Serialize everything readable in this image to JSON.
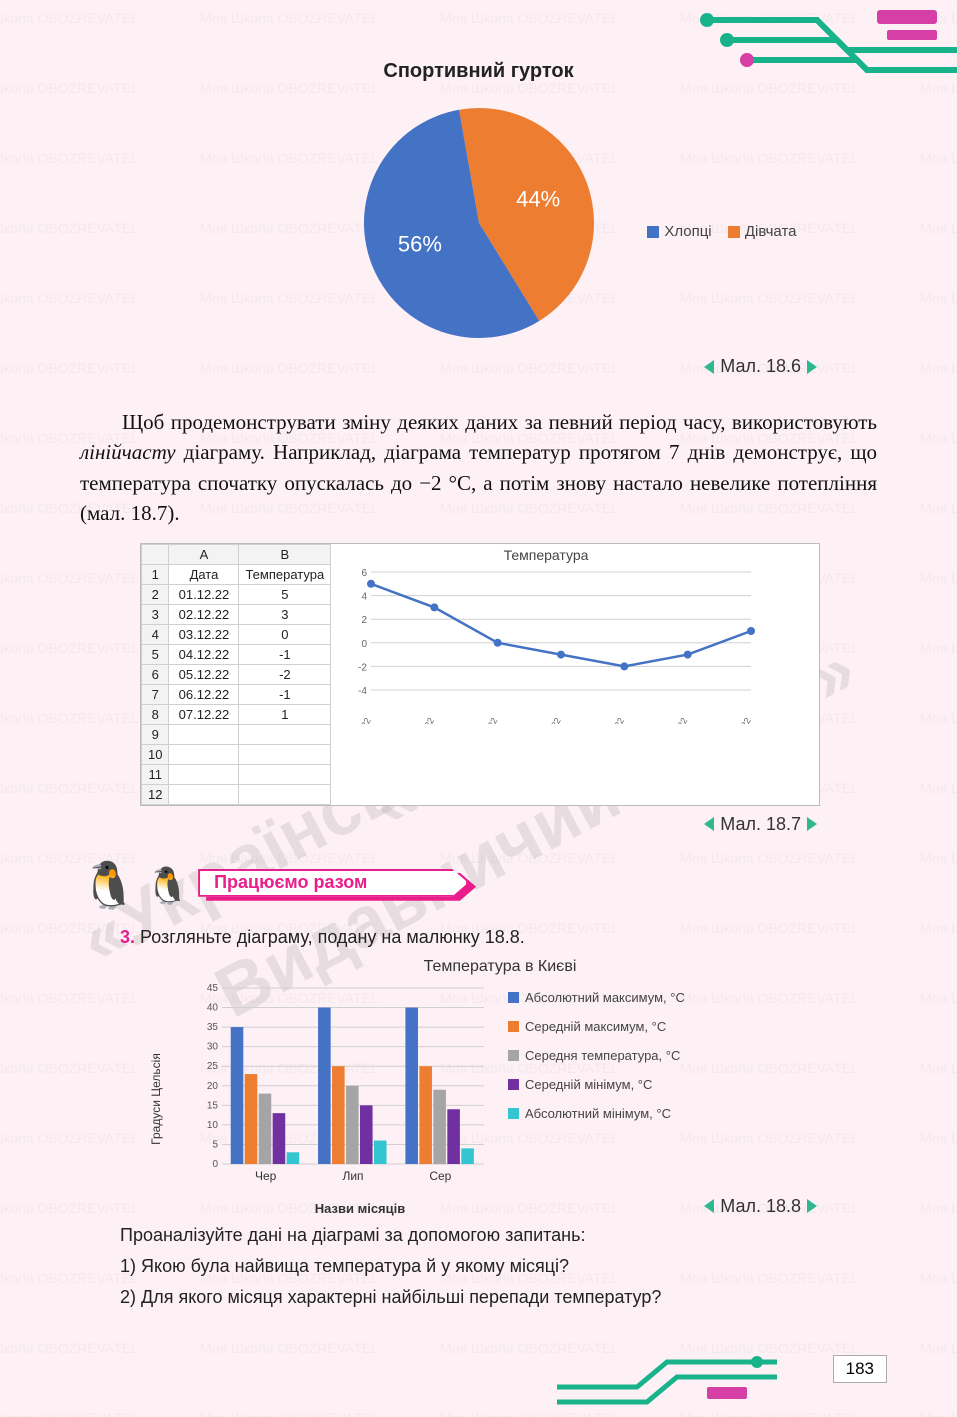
{
  "watermark_text": "Моя Школа   OBOZREVATEL",
  "diag_wm1": "«Український освітній",
  "diag_wm2": "Видавничий центр»",
  "diag_wm3": "«Оріон»",
  "pie": {
    "title": "Спортивний гурток",
    "slices": [
      {
        "label_pct": "44%",
        "value": 44,
        "color": "#ed7d31",
        "legend": "Дівчата"
      },
      {
        "label_pct": "56%",
        "value": 56,
        "color": "#4472c4",
        "legend": "Хлопці"
      }
    ],
    "legend_order": [
      "Хлопці",
      "Дівчата"
    ],
    "legend_colors": [
      "#4472c4",
      "#ed7d31"
    ],
    "radius": 115,
    "fig_label": "Мал. 18.6"
  },
  "para1": "Щоб продемонструвати зміну деяких даних за певний період часу, використовують <em>лінійчасту</em> діаграму. Наприклад, діаграма температур протягом 7 днів демонструє, що температура спочатку опускалась до −2 °С, а потім знову настало невелике потепління (мал. 18.7).",
  "excel": {
    "cols": [
      "",
      "A",
      "B"
    ],
    "header_row": [
      "1",
      "Дата",
      "Температура"
    ],
    "rows": [
      [
        "2",
        "01.12.22",
        "5"
      ],
      [
        "3",
        "02.12.22",
        "3"
      ],
      [
        "4",
        "03.12.22",
        "0"
      ],
      [
        "5",
        "04.12.22",
        "-1"
      ],
      [
        "6",
        "05.12.22",
        "-2"
      ],
      [
        "7",
        "06.12.22",
        "-1"
      ],
      [
        "8",
        "07.12.22",
        "1"
      ]
    ],
    "extra_rows": [
      "9",
      "10",
      "11",
      "12"
    ],
    "chart_title": "Температура",
    "chart_y": [
      5,
      3,
      0,
      -1,
      -2,
      -1,
      1
    ],
    "chart_x": [
      "01.12.22",
      "02.12.22",
      "03.12.22",
      "04.12.22",
      "05.12.22",
      "06.12.22",
      "07.12.22"
    ],
    "line_color": "#4472c4",
    "grid_color": "#d0d0d0",
    "fig_label": "Мал. 18.7"
  },
  "banner": {
    "text": "Працюємо разом"
  },
  "task3": {
    "num": "3.",
    "text": "Розгляньте діаграму, подану на малюнку 18.8."
  },
  "bar": {
    "title": "Температура в Києві",
    "ylabel": "Градуси Цельсія",
    "xlabel": "Назви місяців",
    "categories": [
      "Чер",
      "Лип",
      "Сер"
    ],
    "series": [
      {
        "name": "Абсолютний максимум, °С",
        "color": "#4472c4",
        "values": [
          35,
          40,
          40
        ]
      },
      {
        "name": "Середній максимум, °С",
        "color": "#ed7d31",
        "values": [
          23,
          25,
          25
        ]
      },
      {
        "name": "Середня температура, °С",
        "color": "#a5a5a5",
        "values": [
          18,
          20,
          19
        ]
      },
      {
        "name": "Середній мінімум, °С",
        "color": "#7030a0",
        "values": [
          13,
          15,
          14
        ]
      },
      {
        "name": "Абсолютний мінімум, °С",
        "color": "#33c6d1",
        "values": [
          3,
          6,
          4
        ]
      }
    ],
    "ylim": [
      0,
      45
    ],
    "ystep": 5,
    "grid_color": "#d0d0d0",
    "fig_label": "Мал. 18.8"
  },
  "questions": {
    "intro": "Проаналізуйте дані на діаграмі за допомогою запитань:",
    "q1": "1) Якою була найвища температура й у якому місяці?",
    "q2": "2) Для якого місяця характерні найбільші перепади температур?"
  },
  "page_number": "183"
}
